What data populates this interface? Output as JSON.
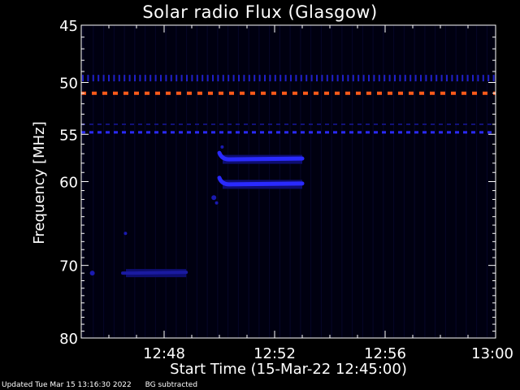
{
  "chart_data": {
    "type": "heatmap",
    "title": "Solar radio Flux (Glasgow)",
    "xlabel": "Start Time (15-Mar-22 12:45:00)",
    "ylabel": "Frequency [MHz]",
    "x_range_minutes": [
      0,
      15
    ],
    "x_ticks": [
      {
        "minute": 3,
        "label": "12:48"
      },
      {
        "minute": 7,
        "label": "12:52"
      },
      {
        "minute": 11,
        "label": "12:56"
      },
      {
        "minute": 15,
        "label": "13:00"
      }
    ],
    "y_range_mhz": [
      45,
      80
    ],
    "y_ticks": [
      45,
      50,
      55,
      60,
      70,
      80
    ],
    "y_scale": "log",
    "background": "#000010",
    "features": [
      {
        "kind": "dashed-line",
        "freq_mhz": 51.0,
        "minute_start": 0,
        "minute_end": 15,
        "color": "#ff5a1a",
        "intensity": "high"
      },
      {
        "kind": "dashed-line",
        "freq_mhz": 54.8,
        "minute_start": 0,
        "minute_end": 15,
        "color": "#2a2aff",
        "intensity": "medium"
      },
      {
        "kind": "dashed-line",
        "freq_mhz": 54.0,
        "minute_start": 0,
        "minute_end": 15,
        "color": "#12127a",
        "intensity": "low"
      },
      {
        "kind": "tick-row",
        "freq_mhz": 49.6,
        "minute_start": 0,
        "minute_end": 15,
        "color": "#2020c8",
        "intensity": "medium"
      },
      {
        "kind": "band",
        "freq_mhz": 57.6,
        "minute_start": 5.0,
        "minute_end": 8.0,
        "color": "#2a2aff",
        "intensity": "high"
      },
      {
        "kind": "band",
        "freq_mhz": 60.3,
        "minute_start": 5.0,
        "minute_end": 8.0,
        "color": "#2a2aff",
        "intensity": "high"
      },
      {
        "kind": "band",
        "freq_mhz": 71.0,
        "minute_start": 1.5,
        "minute_end": 3.8,
        "color": "#1a1aa0",
        "intensity": "low"
      }
    ]
  },
  "footer": {
    "updated": "Updated Tue Mar 15 13:16:30 2022",
    "note": "BG subtracted"
  }
}
